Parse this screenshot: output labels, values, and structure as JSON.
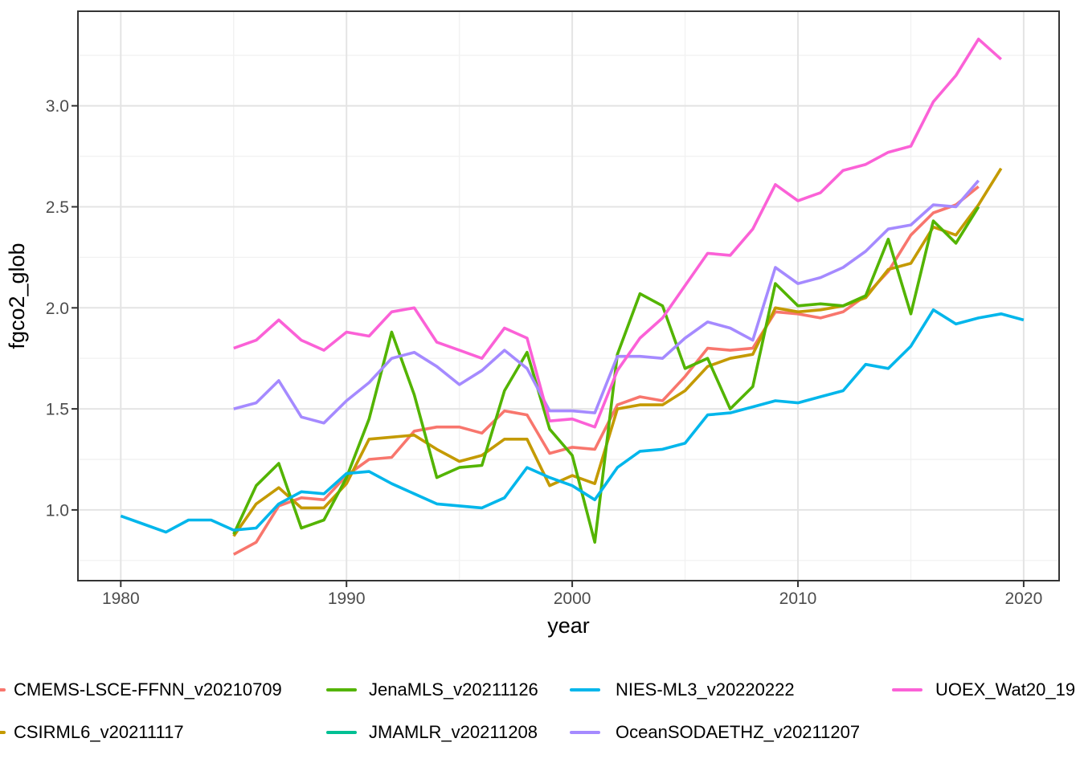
{
  "chart_data": {
    "type": "line",
    "title": "",
    "xlabel": "year",
    "ylabel": "fgco2_glob",
    "x_axis": {
      "ticks": [
        1980,
        1990,
        2000,
        2010,
        2020
      ],
      "tick_labels": [
        "1980",
        "1990",
        "2000",
        "2010",
        "2020"
      ],
      "minor_ticks": [
        1985,
        1995,
        2005,
        2015
      ],
      "range": [
        1978.1,
        2021.6
      ]
    },
    "y_axis": {
      "ticks": [
        1.0,
        1.5,
        2.0,
        2.5,
        3.0
      ],
      "tick_labels": [
        "1.0",
        "1.5",
        "2.0",
        "2.5",
        "3.0"
      ],
      "minor_ticks": [
        0.75,
        1.25,
        1.75,
        2.25,
        2.75,
        3.25
      ],
      "range": [
        0.65,
        3.47
      ]
    },
    "grid": "major-and-minor",
    "legend_position": "bottom",
    "series": [
      {
        "name": "CMEMS-LSCE-FFNN_v20210709",
        "color": "#F8766D",
        "start_year": 1985,
        "values": [
          0.78,
          0.84,
          1.02,
          1.06,
          1.05,
          1.17,
          1.25,
          1.26,
          1.39,
          1.41,
          1.41,
          1.38,
          1.49,
          1.47,
          1.28,
          1.31,
          1.3,
          1.52,
          1.56,
          1.54,
          1.66,
          1.8,
          1.79,
          1.8,
          1.98,
          1.97,
          1.95,
          1.98,
          2.06,
          2.18,
          2.36,
          2.47,
          2.51,
          2.6
        ]
      },
      {
        "name": "CSIRML6_v20211117",
        "color": "#C49A00",
        "start_year": 1985,
        "values": [
          0.87,
          1.03,
          1.11,
          1.01,
          1.01,
          1.13,
          1.35,
          1.36,
          1.37,
          1.3,
          1.24,
          1.27,
          1.35,
          1.35,
          1.12,
          1.17,
          1.13,
          1.5,
          1.52,
          1.52,
          1.59,
          1.71,
          1.75,
          1.77,
          2.0,
          1.98,
          1.99,
          2.01,
          2.05,
          2.19,
          2.22,
          2.4,
          2.36,
          2.51,
          2.69
        ]
      },
      {
        "name": "JenaMLS_v20211126",
        "color": "#53B400",
        "start_year": 1985,
        "values": [
          0.88,
          1.12,
          1.23,
          0.91,
          0.95,
          1.16,
          1.45,
          1.88,
          1.57,
          1.16,
          1.21,
          1.22,
          1.59,
          1.78,
          1.4,
          1.27,
          0.84,
          1.77,
          2.07,
          2.01,
          1.7,
          1.75,
          1.5,
          1.61,
          2.12,
          2.01,
          2.02,
          2.01,
          2.06,
          2.34,
          1.97,
          2.43,
          2.32,
          2.5
        ]
      },
      {
        "name": "JMAMLR_v20211208",
        "color": "#00C094",
        "start_year": null,
        "visible_line": false,
        "values": []
      },
      {
        "name": "NIES-ML3_v20220222",
        "color": "#00B6EB",
        "start_year": 1980,
        "values": [
          0.97,
          0.93,
          0.89,
          0.95,
          0.95,
          0.9,
          0.91,
          1.03,
          1.09,
          1.08,
          1.18,
          1.19,
          1.13,
          1.08,
          1.03,
          1.02,
          1.01,
          1.06,
          1.21,
          1.16,
          1.12,
          1.05,
          1.21,
          1.29,
          1.3,
          1.33,
          1.47,
          1.48,
          1.51,
          1.54,
          1.53,
          1.56,
          1.59,
          1.72,
          1.7,
          1.81,
          1.99,
          1.92,
          1.95,
          1.97,
          1.94
        ]
      },
      {
        "name": "OceanSODAETHZ_v20211207",
        "color": "#A58AFF",
        "start_year": 1985,
        "values": [
          1.5,
          1.53,
          1.64,
          1.46,
          1.43,
          1.54,
          1.63,
          1.75,
          1.78,
          1.71,
          1.62,
          1.69,
          1.79,
          1.7,
          1.49,
          1.49,
          1.48,
          1.76,
          1.76,
          1.75,
          1.85,
          1.93,
          1.9,
          1.84,
          2.2,
          2.12,
          2.15,
          2.2,
          2.28,
          2.39,
          2.41,
          2.51,
          2.5,
          2.63
        ]
      },
      {
        "name": "UOEX_Wat20_19",
        "color": "#FB61D7",
        "start_year": 1985,
        "values": [
          1.8,
          1.84,
          1.94,
          1.84,
          1.79,
          1.88,
          1.86,
          1.98,
          2.0,
          1.83,
          1.79,
          1.75,
          1.9,
          1.85,
          1.44,
          1.45,
          1.41,
          1.69,
          1.85,
          1.95,
          2.11,
          2.27,
          2.26,
          2.39,
          2.61,
          2.53,
          2.57,
          2.68,
          2.71,
          2.77,
          2.8,
          3.02,
          3.15,
          3.33,
          3.23
        ]
      }
    ]
  },
  "legend": {
    "items": [
      {
        "label": "CMEMS-LSCE-FFNN_v20210709",
        "color": "#F8766D"
      },
      {
        "label": "JenaMLS_v20211126",
        "color": "#53B400"
      },
      {
        "label": "NIES-ML3_v20220222",
        "color": "#00B6EB"
      },
      {
        "label": "UOEX_Wat20_19",
        "color": "#FB61D7"
      },
      {
        "label": "CSIRML6_v20211117",
        "color": "#C49A00"
      },
      {
        "label": "JMAMLR_v20211208",
        "color": "#00C094"
      },
      {
        "label": "OceanSODAETHZ_v20211207",
        "color": "#A58AFF"
      }
    ]
  },
  "style": {
    "panel_border_color": "#343434",
    "tick_color": "#343434",
    "tick_label_color": "#4D4D4D",
    "axis_title_color": "#000000",
    "grid_major_color": "#E4E4E4",
    "grid_minor_color": "#F2F2F2",
    "background": "#FFFFFF"
  }
}
